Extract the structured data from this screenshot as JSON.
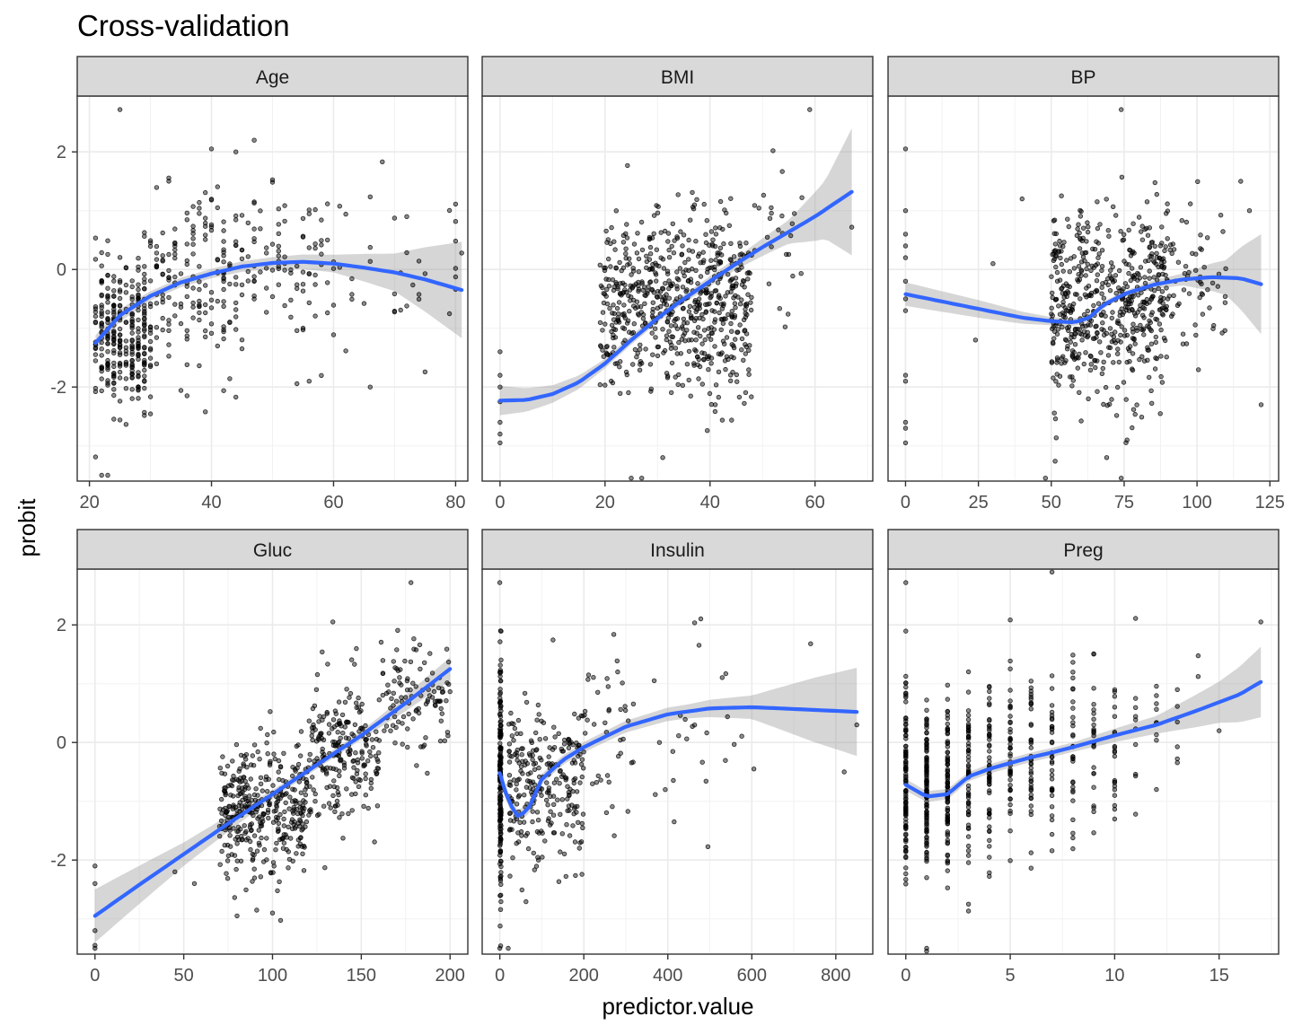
{
  "chart_data": {
    "type": "scatter",
    "title": "Cross-validation",
    "xlabel": "predictor.value",
    "ylabel": "probit",
    "ylim": [
      -3.6,
      2.95
    ],
    "y_ticks": [
      -2,
      0,
      2
    ],
    "grid": true,
    "point_color": "#000000",
    "smooth_color": "#3366FF",
    "band_color": "#999999",
    "strip_fill": "#d9d9d9",
    "panels": [
      {
        "name": "Age",
        "xlim": [
          18,
          82
        ],
        "x_ticks": [
          20,
          40,
          60,
          80
        ],
        "point_groups": [
          {
            "x_range": [
              21,
              30
            ],
            "y_mean": -1.1,
            "y_sd": 0.6,
            "count": 300
          },
          {
            "x_range": [
              30,
              45
            ],
            "y_mean": -0.25,
            "y_sd": 0.75,
            "count": 170
          },
          {
            "x_range": [
              45,
              60
            ],
            "y_mean": 0.05,
            "y_sd": 0.7,
            "count": 90
          },
          {
            "x_range": [
              60,
              81
            ],
            "y_mean": 0.05,
            "y_sd": 0.75,
            "count": 35
          }
        ],
        "extra_points": [
          [
            25,
            2.72
          ],
          [
            22,
            -3.5
          ],
          [
            23,
            -3.5
          ],
          [
            40,
            2.05
          ],
          [
            44,
            2.0
          ],
          [
            56,
            -1.9
          ],
          [
            66,
            -2.0
          ],
          [
            36,
            -2.15
          ],
          [
            81,
            0.28
          ],
          [
            72,
            0.9
          ]
        ],
        "smooth": [
          [
            21,
            -1.25
          ],
          [
            25,
            -0.78
          ],
          [
            30,
            -0.45
          ],
          [
            35,
            -0.22
          ],
          [
            40,
            -0.07
          ],
          [
            45,
            0.05
          ],
          [
            50,
            0.11
          ],
          [
            55,
            0.13
          ],
          [
            60,
            0.1
          ],
          [
            65,
            0.03
          ],
          [
            70,
            -0.05
          ],
          [
            75,
            -0.17
          ],
          [
            81,
            -0.35
          ]
        ],
        "band_halfwidth": [
          [
            21,
            0.13
          ],
          [
            30,
            0.08
          ],
          [
            40,
            0.08
          ],
          [
            50,
            0.1
          ],
          [
            60,
            0.15
          ],
          [
            70,
            0.32
          ],
          [
            81,
            0.82
          ]
        ]
      },
      {
        "name": "BMI",
        "xlim": [
          -3.4,
          71
        ],
        "x_ticks": [
          0,
          20,
          40,
          60
        ],
        "point_groups": [
          {
            "x_range": [
              19,
              48
            ],
            "y_mean": -0.6,
            "y_sd": 0.75,
            "count": 650
          },
          {
            "x_range": [
              48,
              58
            ],
            "y_mean": 0.35,
            "y_sd": 0.7,
            "count": 25
          }
        ],
        "extra_points": [
          [
            0,
            -1.4
          ],
          [
            0,
            -1.8
          ],
          [
            0,
            -2.0
          ],
          [
            0,
            -2.25
          ],
          [
            0,
            -2.6
          ],
          [
            0,
            -2.8
          ],
          [
            0,
            -2.95
          ],
          [
            59,
            2.72
          ],
          [
            67,
            0.72
          ],
          [
            52,
            2.02
          ],
          [
            41,
            -2.3
          ],
          [
            31,
            -3.2
          ],
          [
            25,
            -3.55
          ],
          [
            27,
            -3.55
          ]
        ],
        "smooth": [
          [
            0,
            -2.23
          ],
          [
            5,
            -2.22
          ],
          [
            10,
            -2.12
          ],
          [
            15,
            -1.92
          ],
          [
            20,
            -1.6
          ],
          [
            25,
            -1.2
          ],
          [
            30,
            -0.83
          ],
          [
            35,
            -0.5
          ],
          [
            40,
            -0.2
          ],
          [
            45,
            0.1
          ],
          [
            50,
            0.38
          ],
          [
            55,
            0.64
          ],
          [
            60,
            0.9
          ],
          [
            67,
            1.32
          ]
        ],
        "band_halfwidth": [
          [
            0,
            0.25
          ],
          [
            10,
            0.15
          ],
          [
            20,
            0.08
          ],
          [
            35,
            0.07
          ],
          [
            45,
            0.1
          ],
          [
            55,
            0.2
          ],
          [
            62,
            0.5
          ],
          [
            67,
            1.08
          ]
        ]
      },
      {
        "name": "BP",
        "xlim": [
          -6,
          128
        ],
        "x_ticks": [
          0,
          25,
          50,
          75,
          100,
          125
        ],
        "point_groups": [
          {
            "x_range": [
              50,
              90
            ],
            "y_mean": -0.6,
            "y_sd": 0.8,
            "count": 560
          },
          {
            "x_range": [
              90,
              110
            ],
            "y_mean": -0.25,
            "y_sd": 0.7,
            "count": 60
          }
        ],
        "extra_points": [
          [
            0,
            2.05
          ],
          [
            0,
            1.0
          ],
          [
            0,
            0.6
          ],
          [
            0,
            0.4
          ],
          [
            0,
            0.2
          ],
          [
            0,
            -0.2
          ],
          [
            0,
            -0.5
          ],
          [
            0,
            -0.7
          ],
          [
            0,
            -1.8
          ],
          [
            0,
            -1.9
          ],
          [
            0,
            -2.6
          ],
          [
            0,
            -2.7
          ],
          [
            0,
            -2.95
          ],
          [
            24,
            -1.2
          ],
          [
            30,
            0.1
          ],
          [
            40,
            1.2
          ],
          [
            122,
            -2.3
          ],
          [
            118,
            1.0
          ],
          [
            115,
            1.5
          ],
          [
            74,
            2.72
          ],
          [
            69,
            -3.2
          ],
          [
            76,
            -2.9
          ],
          [
            48,
            -3.55
          ],
          [
            74,
            -3.55
          ]
        ],
        "smooth": [
          [
            0,
            -0.42
          ],
          [
            10,
            -0.52
          ],
          [
            20,
            -0.62
          ],
          [
            30,
            -0.72
          ],
          [
            40,
            -0.82
          ],
          [
            50,
            -0.88
          ],
          [
            58,
            -0.9
          ],
          [
            63,
            -0.82
          ],
          [
            68,
            -0.6
          ],
          [
            75,
            -0.42
          ],
          [
            85,
            -0.26
          ],
          [
            95,
            -0.17
          ],
          [
            105,
            -0.13
          ],
          [
            115,
            -0.15
          ],
          [
            122,
            -0.25
          ]
        ],
        "band_halfwidth": [
          [
            0,
            0.2
          ],
          [
            25,
            0.15
          ],
          [
            50,
            0.07
          ],
          [
            75,
            0.05
          ],
          [
            95,
            0.1
          ],
          [
            110,
            0.3
          ],
          [
            122,
            0.85
          ]
        ]
      },
      {
        "name": "Gluc",
        "xlim": [
          -10,
          210
        ],
        "x_ticks": [
          0,
          50,
          100,
          150,
          200
        ],
        "point_groups": [
          {
            "x_range": [
              70,
              120
            ],
            "y_mean": -1.2,
            "y_sd": 0.55,
            "count": 380
          },
          {
            "x_range": [
              120,
              160
            ],
            "y_mean": -0.1,
            "y_sd": 0.6,
            "count": 220
          },
          {
            "x_range": [
              160,
              200
            ],
            "y_mean": 0.75,
            "y_sd": 0.55,
            "count": 110
          }
        ],
        "extra_points": [
          [
            0,
            -2.1
          ],
          [
            0,
            -2.4
          ],
          [
            0,
            -3.2
          ],
          [
            0,
            -3.45
          ],
          [
            0,
            -3.5
          ],
          [
            178,
            2.72
          ],
          [
            134,
            2.05
          ],
          [
            100,
            -2.9
          ],
          [
            80,
            -2.95
          ],
          [
            56,
            -2.4
          ],
          [
            45,
            -2.2
          ]
        ],
        "smooth": [
          [
            0,
            -2.95
          ],
          [
            25,
            -2.42
          ],
          [
            50,
            -1.9
          ],
          [
            75,
            -1.38
          ],
          [
            100,
            -0.88
          ],
          [
            125,
            -0.38
          ],
          [
            150,
            0.12
          ],
          [
            175,
            0.67
          ],
          [
            200,
            1.25
          ]
        ],
        "band_halfwidth": [
          [
            0,
            0.45
          ],
          [
            50,
            0.2
          ],
          [
            100,
            0.07
          ],
          [
            150,
            0.07
          ],
          [
            200,
            0.2
          ]
        ]
      },
      {
        "name": "Insulin",
        "xlim": [
          -42,
          888
        ],
        "x_ticks": [
          0,
          200,
          400,
          600,
          800
        ],
        "point_groups": [
          {
            "x_range": [
              0,
              3
            ],
            "y_mean": -0.6,
            "y_sd": 0.95,
            "count": 180
          },
          {
            "x_range": [
              20,
              200
            ],
            "y_mean": -0.75,
            "y_sd": 0.7,
            "count": 260
          },
          {
            "x_range": [
              200,
              320
            ],
            "y_mean": 0.1,
            "y_sd": 0.7,
            "count": 40
          },
          {
            "x_range": [
              320,
              600
            ],
            "y_mean": 0.2,
            "y_sd": 0.8,
            "count": 25
          }
        ],
        "extra_points": [
          [
            0,
            -3.5
          ],
          [
            20,
            -3.5
          ],
          [
            0,
            2.72
          ],
          [
            740,
            1.68
          ],
          [
            850,
            0.3
          ],
          [
            605,
            -0.45
          ],
          [
            415,
            -1.35
          ],
          [
            820,
            -0.5
          ]
        ],
        "smooth": [
          [
            0,
            -0.52
          ],
          [
            20,
            -1.0
          ],
          [
            45,
            -1.28
          ],
          [
            70,
            -1.1
          ],
          [
            100,
            -0.62
          ],
          [
            150,
            -0.3
          ],
          [
            200,
            -0.08
          ],
          [
            300,
            0.27
          ],
          [
            400,
            0.48
          ],
          [
            500,
            0.58
          ],
          [
            600,
            0.6
          ],
          [
            700,
            0.57
          ],
          [
            850,
            0.52
          ]
        ],
        "band_halfwidth": [
          [
            0,
            0.12
          ],
          [
            50,
            0.1
          ],
          [
            150,
            0.08
          ],
          [
            300,
            0.1
          ],
          [
            450,
            0.12
          ],
          [
            600,
            0.2
          ],
          [
            750,
            0.55
          ],
          [
            850,
            0.75
          ]
        ]
      },
      {
        "name": "Preg",
        "xlim": [
          -0.85,
          17.85
        ],
        "x_ticks": [
          0,
          5,
          10,
          15
        ],
        "discrete_x": [
          {
            "x": 0,
            "y_mean": -0.75,
            "y_sd": 0.8,
            "count": 100
          },
          {
            "x": 1,
            "y_mean": -0.9,
            "y_sd": 0.7,
            "count": 110
          },
          {
            "x": 2,
            "y_mean": -0.8,
            "y_sd": 0.75,
            "count": 85
          },
          {
            "x": 3,
            "y_mean": -0.55,
            "y_sd": 0.75,
            "count": 60
          },
          {
            "x": 4,
            "y_mean": -0.4,
            "y_sd": 0.75,
            "count": 55
          },
          {
            "x": 5,
            "y_mean": -0.3,
            "y_sd": 0.75,
            "count": 45
          },
          {
            "x": 6,
            "y_mean": -0.2,
            "y_sd": 0.75,
            "count": 40
          },
          {
            "x": 7,
            "y_mean": -0.1,
            "y_sd": 0.8,
            "count": 35
          },
          {
            "x": 8,
            "y_mean": 0.0,
            "y_sd": 0.8,
            "count": 30
          },
          {
            "x": 9,
            "y_mean": 0.1,
            "y_sd": 0.8,
            "count": 25
          },
          {
            "x": 10,
            "y_mean": 0.1,
            "y_sd": 0.8,
            "count": 20
          },
          {
            "x": 11,
            "y_mean": 0.2,
            "y_sd": 0.8,
            "count": 10
          },
          {
            "x": 12,
            "y_mean": 0.3,
            "y_sd": 0.8,
            "count": 8
          },
          {
            "x": 13,
            "y_mean": 0.3,
            "y_sd": 0.7,
            "count": 6
          },
          {
            "x": 14,
            "y_mean": 0.5,
            "y_sd": 0.6,
            "count": 2
          }
        ],
        "extra_points": [
          [
            0,
            2.72
          ],
          [
            1,
            -3.5
          ],
          [
            1,
            -3.55
          ],
          [
            17,
            2.05
          ],
          [
            15,
            0.2
          ],
          [
            12,
            -0.8
          ],
          [
            10,
            -0.9
          ],
          [
            3,
            -2.75
          ]
        ],
        "smooth": [
          [
            0,
            -0.72
          ],
          [
            1,
            -0.92
          ],
          [
            2,
            -0.88
          ],
          [
            3,
            -0.58
          ],
          [
            4,
            -0.45
          ],
          [
            5,
            -0.35
          ],
          [
            6,
            -0.25
          ],
          [
            7,
            -0.17
          ],
          [
            8,
            -0.08
          ],
          [
            9,
            0.02
          ],
          [
            10,
            0.12
          ],
          [
            12,
            0.3
          ],
          [
            14,
            0.55
          ],
          [
            16,
            0.82
          ],
          [
            17,
            1.03
          ]
        ],
        "band_halfwidth": [
          [
            0,
            0.1
          ],
          [
            3,
            0.08
          ],
          [
            8,
            0.08
          ],
          [
            12,
            0.15
          ],
          [
            15,
            0.35
          ],
          [
            17,
            0.6
          ]
        ]
      }
    ]
  }
}
